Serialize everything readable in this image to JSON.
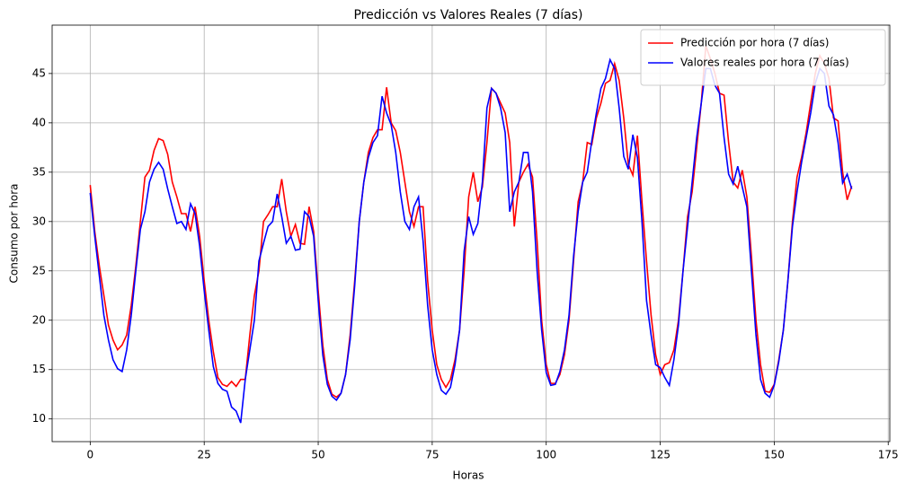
{
  "chart_data": {
    "type": "line",
    "title": "Predicción vs Valores Reales (7 días)",
    "x_label": "Horas",
    "y_label": "Consumo por hora",
    "x": [
      0,
      1,
      2,
      3,
      4,
      5,
      6,
      7,
      8,
      9,
      10,
      11,
      12,
      13,
      14,
      15,
      16,
      17,
      18,
      19,
      20,
      21,
      22,
      23,
      24,
      25,
      26,
      27,
      28,
      29,
      30,
      31,
      32,
      33,
      34,
      35,
      36,
      37,
      38,
      39,
      40,
      41,
      42,
      43,
      44,
      45,
      46,
      47,
      48,
      49,
      50,
      51,
      52,
      53,
      54,
      55,
      56,
      57,
      58,
      59,
      60,
      61,
      62,
      63,
      64,
      65,
      66,
      67,
      68,
      69,
      70,
      71,
      72,
      73,
      74,
      75,
      76,
      77,
      78,
      79,
      80,
      81,
      82,
      83,
      84,
      85,
      86,
      87,
      88,
      89,
      90,
      91,
      92,
      93,
      94,
      95,
      96,
      97,
      98,
      99,
      100,
      101,
      102,
      103,
      104,
      105,
      106,
      107,
      108,
      109,
      110,
      111,
      112,
      113,
      114,
      115,
      116,
      117,
      118,
      119,
      120,
      121,
      122,
      123,
      124,
      125,
      126,
      127,
      128,
      129,
      130,
      131,
      132,
      133,
      134,
      135,
      136,
      137,
      138,
      139,
      140,
      141,
      142,
      143,
      144,
      145,
      146,
      147,
      148,
      149,
      150,
      151,
      152,
      153,
      154,
      155,
      156,
      157,
      158,
      159,
      160,
      161,
      162,
      163,
      164,
      165,
      166,
      167
    ],
    "series": [
      {
        "name": "Predicción por hora (7 días)",
        "color": "#ff0000",
        "values": [
          33.7,
          29,
          25.5,
          22.5,
          19.5,
          18,
          17,
          17.5,
          18.5,
          21.5,
          25.5,
          30,
          34.5,
          35.2,
          37.2,
          38.4,
          38.2,
          36.8,
          34,
          32.5,
          30.8,
          30.8,
          29,
          31.5,
          28.5,
          24,
          20,
          16.8,
          14.2,
          13.5,
          13.3,
          13.8,
          13.3,
          14,
          14,
          18.5,
          22.5,
          25,
          30,
          30.7,
          31.5,
          31.5,
          34.3,
          31,
          28.5,
          29.7,
          27.8,
          27.7,
          31.5,
          29,
          23,
          17.5,
          14,
          12.5,
          12.2,
          12.6,
          14.5,
          18.5,
          24,
          30,
          34,
          37,
          38.5,
          39.3,
          39.3,
          43.6,
          40,
          39.2,
          37,
          34,
          31,
          29.5,
          31.5,
          31.5,
          24,
          19,
          15.5,
          14,
          13.2,
          14,
          16,
          19,
          25,
          32.5,
          35,
          32,
          33.5,
          38,
          43.5,
          43,
          42,
          41,
          38,
          29.5,
          34,
          35,
          35.8,
          34.5,
          28,
          20,
          15.5,
          13.6,
          13.6,
          14.5,
          16.5,
          20,
          26,
          32,
          34,
          38,
          37.8,
          40.5,
          42,
          44,
          44.3,
          46,
          44.3,
          40.5,
          35.8,
          34.7,
          38.7,
          32,
          26,
          20.5,
          16.5,
          14.5,
          15.5,
          15.7,
          17,
          20,
          25,
          30.5,
          33,
          37.5,
          42,
          47.8,
          46.5,
          45,
          43,
          42.8,
          38,
          34,
          33.4,
          35.2,
          32.5,
          26.5,
          20,
          15.5,
          12.8,
          12.7,
          13.5,
          16,
          19,
          24,
          30,
          34.5,
          36.5,
          39,
          42,
          45,
          46.8,
          46,
          44.5,
          40.5,
          40.2,
          35,
          32.2,
          33.6
        ]
      },
      {
        "name": "Valores reales por hora (7 días)",
        "color": "#0000ff",
        "values": [
          32.9,
          28.5,
          24.5,
          20.5,
          18,
          16,
          15.1,
          14.8,
          17,
          20.5,
          25,
          29.2,
          31,
          34,
          35.3,
          36,
          35.3,
          33.3,
          31.5,
          29.8,
          30,
          29.2,
          31.8,
          30.8,
          27.5,
          23,
          19,
          15.3,
          13.6,
          13,
          12.8,
          11.2,
          10.8,
          9.6,
          14,
          17,
          20,
          26,
          27.8,
          29.5,
          30,
          32.8,
          30.5,
          27.8,
          28.5,
          27.1,
          27.2,
          31,
          30.5,
          28.5,
          22,
          16.5,
          13.5,
          12.3,
          11.9,
          12.6,
          14.5,
          18,
          23.5,
          30,
          34,
          36.5,
          38,
          38.7,
          42.7,
          41,
          39.8,
          37,
          33,
          30,
          29.2,
          31.5,
          32.5,
          28,
          21.5,
          17,
          14.5,
          12.9,
          12.5,
          13.2,
          15.5,
          19,
          27,
          30.5,
          28.7,
          29.8,
          34,
          41.5,
          43.5,
          43,
          41.5,
          39,
          31,
          33,
          34,
          37,
          37,
          33,
          25,
          19,
          14.7,
          13.4,
          13.5,
          14.8,
          17,
          20.5,
          26.5,
          31,
          34,
          35,
          38.2,
          41,
          43.5,
          44.5,
          46.4,
          45.5,
          41.5,
          36.6,
          35.3,
          38.8,
          36.5,
          30,
          22,
          18.5,
          15.5,
          15.2,
          14.2,
          13.4,
          16,
          19.5,
          25,
          29.5,
          34,
          38.5,
          42,
          45.5,
          45.5,
          43.8,
          43,
          38.5,
          34.8,
          33.8,
          35.6,
          33.5,
          31.5,
          25,
          18.5,
          14,
          12.6,
          12.2,
          13.4,
          15.8,
          19,
          24,
          29.5,
          33,
          36,
          38.5,
          41,
          44,
          45.5,
          45,
          41.7,
          40.8,
          38,
          33.9,
          34.8,
          33.3
        ]
      }
    ],
    "xlim": [
      -8.35,
      175.35
    ],
    "xticks": [
      0,
      25,
      50,
      75,
      100,
      125,
      150,
      175
    ],
    "ylim": [
      7.7,
      49.9
    ],
    "yticks": [
      10,
      15,
      20,
      25,
      30,
      35,
      40,
      45
    ],
    "grid": true,
    "legend": "upper right"
  }
}
